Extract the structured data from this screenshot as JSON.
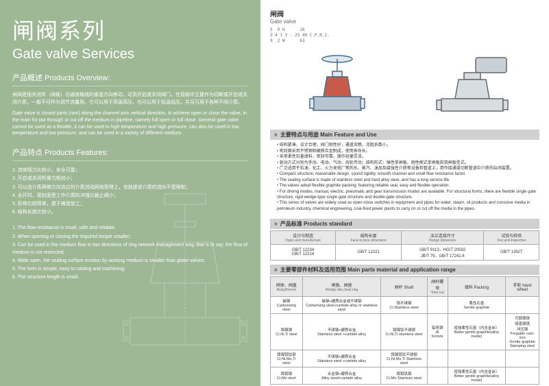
{
  "left": {
    "title_cn": "闸阀系列",
    "title_en": "Gate valve Services",
    "overview_h": "产品概述 Products Overview:",
    "overview_cn": "闸阀是指关闭件（闸板）沿通道轴线的垂直方向移动，达到开启或关闭阀门，在管路中主要作为切断或开启或关闭介质，一般不可作为调节流量用，它可以用于高温高压，也可以用于低温低压，并且可用于各种不同介质。",
    "overview_en": "Gate valve is closed parts (ram) along the channel axis vertical direction, to achieve open or close the valve, in the main for put through or cut off the medium in pipeline, namely full open or full close. General gate valve cannot be used as a throttle, it can be used in high temperature and high pressure, can also be used in low temperature and low pressure, and can be used in a variety of different medium.",
    "features_h": "产品特点 Products Features:",
    "feat_cn": [
      "1. 流体阻力比较小，安全可靠；",
      "2. 开启或关闭所需力矩较小；",
      "3. 可以由介质两侧方向流过的介质流动网络管理上，也就是说介质的流向不受限制；",
      "4. 全开时，密封面受工作介质的冲蚀比截止阀小；",
      "5. 形体比较简单，便于铸造加工；",
      "6. 结构长度比较小。"
    ],
    "feat_en": [
      "1. The flow resistance is small, safe and reliable;",
      "2. When opening or closing the required torque smaller;",
      "3. Can be used in the medium flow in two directions of ring network management way, that is to say, the flow of medium is not restricted;",
      "4. Wide open, the sealing surface erosion by working medium is smaller than globe valves;",
      "5. The form is simple, easy to casting and machining;",
      "6. The structure length is small."
    ]
  },
  "right": {
    "title_cn": "闸阀",
    "title_en": "Gate valve",
    "code": "5  0 H      16\nZ 4 1 Y - 25 40 C.P.R.I.\n9  2 W      63",
    "sec1_h": "主要特点与用途 Main Feature and Use",
    "bullets": [
      "结构紧凑，设计合理，阀门刚性好，通道流畅，流阻系数小。",
      "密封面采用不锈钢和硬质合金制成，使用寿命长。",
      "采用柔性石墨填料，密封可靠，操作轻便灵活。",
      "驱动方式分别为手动、电动、气动、齿轮传动；结构形式：弹性单闸板、刚性楔式单闸板和双闸板型式。",
      "广泛适用于石油、化工、火力发电厂等的水、蒸汽、油品及腐蚀性介质等设备和管道上，用作接通或切断管道中介质的启闭装置。",
      "Compact structure, reasonable design, sound rigidity, smooth channel and small flow resistance factor.",
      "The sealing surface is made of stainless steel and hard alloy steel, and has a long service life.",
      "The valves adopt flexible graphite packing, featuring reliable seal, easy and flexible operation.",
      "For driving modes, manual, electric, pneumatic and gear transmission modes are available. For structural forms, there are flexible single gate structure, rigid wedge-type single gate structure and double-gate structure.",
      "This series of valves are widely used as open-close switches in equipment and pipes for water, steam, oil products and corrosive media in petroleum industry, chemical engineering, coal-fired power plants to carry on or cut off the media in the pipes."
    ],
    "sec2_h": "产品标准 Products standard",
    "t1": {
      "headers": [
        [
          "设计与制造",
          "Dgsin and manufacture"
        ],
        [
          "结构长度",
          "Face-to-face dimension"
        ],
        [
          "法兰连接尺寸",
          "Flange dimension"
        ],
        [
          "试验与检验",
          "Test and inspection"
        ]
      ],
      "row": [
        "GB/T 12234\nGB/T 12224",
        "GB/T 12221",
        "GB/T 9113，HG/T 20592\nJB/T 79，GB/T 17241.6",
        "GB/T 13927"
      ]
    },
    "sec3_h": "主要零部件材料及适用范围 Main parts material and application range",
    "t2": {
      "headers": [
        [
          "阀体、阀盖",
          "Body,Bonnet"
        ],
        [
          "闸板、阀座",
          "Wedge disc,Seat ring"
        ],
        [
          "阀杆 Shaft",
          ""
        ],
        [
          "阀杆螺母",
          "Yoke nut"
        ],
        [
          "填料 Packing",
          ""
        ],
        [
          "手轮 hand wheel",
          ""
        ]
      ],
      "rows": [
        [
          "碳钢\nCarburising steel",
          "碳钢+硬质合金或不锈钢\nCarburising steel+carbide alloy or stainless steel",
          "铬不锈钢\nCr,Stainless steel",
          "",
          "柔性石墨\nGentle graphite",
          ""
        ],
        [
          "铬镍钢\nCr,Ni,Ti steel",
          "不锈钢+硬质合金\nStainless steel +carbide alloy",
          "铬镍钛不锈钢\nCr,Ni,Ti stainless steel",
          "铝青铜\nAl bronze",
          "增强柔性石墨（内含金丝）\nBetter gentle graphite(alloy inside)",
          "可锻铸铁\n球墨铸铁\n冲压钢\nForgable cast-iron\nGentle graphite\nStamping steel"
        ],
        [
          "铬镍钼钛钢\nCr,Ni,Mo,Ti steel",
          "不锈钢+硬质合金\nStainless steel +carbide alloy",
          "铬镍钼钛不锈钢\nCr,Ni,Mo,Ti Stainless steel",
          "",
          "",
          ""
        ],
        [
          "铬钼钢\nCr,Mo steel",
          "合金钢+硬质合金\nAlloy steel+carbide alloy",
          "铬钼钒钢\nCr,Mo Stainless steel",
          "",
          "增强柔性石墨（内含金丝）\nBetter gentle graphite(alloy inside)",
          ""
        ]
      ]
    }
  },
  "colors": {
    "left_bg": "#9eb896",
    "bar_bg": "#d0d0d0",
    "border": "#aaa"
  }
}
